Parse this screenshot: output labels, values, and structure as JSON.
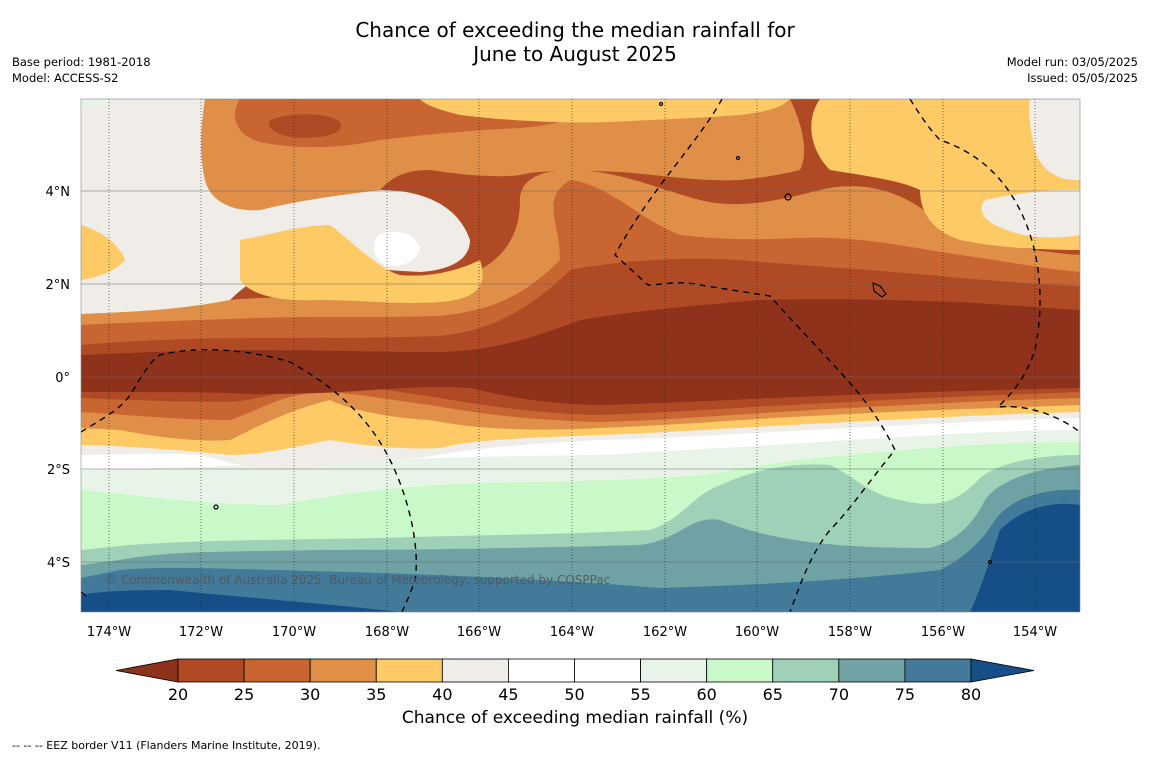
{
  "title_line1": "Chance of exceeding the median rainfall for",
  "title_line2": "June to August 2025",
  "meta_left": {
    "base_period": "Base period: 1981-2018",
    "model": "Model: ACCESS-S2"
  },
  "meta_right": {
    "model_run": "Model run: 03/05/2025",
    "issued": "Issued: 05/05/2025"
  },
  "map": {
    "lon_labels": [
      "174°W",
      "172°W",
      "170°W",
      "168°W",
      "166°W",
      "164°W",
      "162°W",
      "160°W",
      "158°W",
      "156°W",
      "154°W"
    ],
    "lat_labels": [
      "4°N",
      "2°N",
      "0°",
      "2°S",
      "4°S"
    ],
    "copyright": "© Commonwealth of Australia 2025, Bureau of Meteorology, supported by COSPPac"
  },
  "colorbar": {
    "ticks": [
      "20",
      "25",
      "30",
      "35",
      "40",
      "45",
      "50",
      "55",
      "60",
      "65",
      "70",
      "75",
      "80"
    ],
    "colors": {
      "below_20": "#8f321b",
      "20_25": "#b04a25",
      "25_30": "#c96530",
      "30_35": "#df8f47",
      "35_40": "#fdca66",
      "40_45": "#f0ece7",
      "45_50": "#ffffff",
      "50_55": "#ffffff",
      "55_60": "#e9f4e9",
      "60_65": "#c9f8c9",
      "65_70": "#9fd0b8",
      "70_75": "#6ea2a4",
      "75_80": "#437a9a",
      "above_80": "#164f87"
    },
    "label": "Chance of exceeding median rainfall (%)"
  },
  "footnote": "--  --  -- EEZ border V11 (Flanders Marine Institute, 2019)."
}
